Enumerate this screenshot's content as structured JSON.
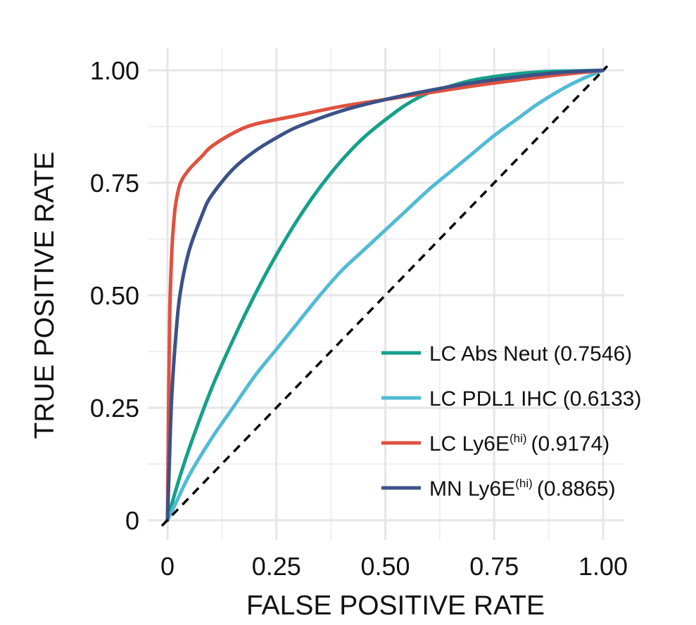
{
  "chart_data": {
    "type": "line",
    "title": "",
    "xlabel": "FALSE POSITIVE RATE",
    "ylabel": "TRUE POSITIVE RATE",
    "xlim": [
      0,
      1
    ],
    "ylim": [
      0,
      1
    ],
    "x_ticks": [
      0,
      0.25,
      0.5,
      0.75,
      1.0
    ],
    "x_tick_labels": [
      "0",
      "0.25",
      "0.50",
      "0.75",
      "1.00"
    ],
    "y_ticks": [
      0,
      0.25,
      0.5,
      0.75,
      1.0
    ],
    "y_tick_labels": [
      "0",
      "0.25",
      "0.50",
      "0.75",
      "1.00"
    ],
    "grid": true,
    "legend_position": "bottom-right",
    "diagonal": {
      "style": "dashed",
      "color": "#000000",
      "points": [
        [
          0,
          0
        ],
        [
          1,
          1
        ]
      ]
    },
    "series": [
      {
        "name": "LC Abs Neut",
        "name_sup": "",
        "auc": "(0.7546)",
        "color": "#15a08a",
        "x": [
          0,
          0.02,
          0.05,
          0.1,
          0.15,
          0.2,
          0.25,
          0.3,
          0.35,
          0.4,
          0.45,
          0.5,
          0.55,
          0.6,
          0.65,
          0.7,
          0.75,
          0.8,
          0.85,
          0.9,
          0.95,
          1.0
        ],
        "y": [
          0,
          0.07,
          0.16,
          0.29,
          0.4,
          0.5,
          0.59,
          0.67,
          0.74,
          0.8,
          0.85,
          0.89,
          0.925,
          0.95,
          0.965,
          0.978,
          0.986,
          0.992,
          0.996,
          0.998,
          0.999,
          1.0
        ]
      },
      {
        "name": "LC PDL1 IHC",
        "name_sup": "",
        "auc": "(0.6133)",
        "color": "#4fbbd5",
        "x": [
          0,
          0.02,
          0.05,
          0.1,
          0.15,
          0.2,
          0.25,
          0.3,
          0.35,
          0.4,
          0.45,
          0.5,
          0.55,
          0.6,
          0.65,
          0.7,
          0.75,
          0.8,
          0.85,
          0.9,
          0.95,
          1.0
        ],
        "y": [
          0,
          0.04,
          0.1,
          0.18,
          0.25,
          0.32,
          0.38,
          0.44,
          0.5,
          0.555,
          0.6,
          0.645,
          0.69,
          0.735,
          0.775,
          0.815,
          0.855,
          0.89,
          0.925,
          0.955,
          0.98,
          1.0
        ]
      },
      {
        "name": "LC Ly6E",
        "name_sup": "(hi)",
        "auc": "(0.9174)",
        "color": "#e05140",
        "x": [
          0,
          0.002,
          0.005,
          0.01,
          0.015,
          0.02,
          0.03,
          0.05,
          0.08,
          0.1,
          0.15,
          0.2,
          0.3,
          0.4,
          0.5,
          0.6,
          0.7,
          0.8,
          0.9,
          1.0
        ],
        "y": [
          0,
          0.2,
          0.45,
          0.6,
          0.67,
          0.71,
          0.75,
          0.78,
          0.81,
          0.83,
          0.86,
          0.88,
          0.9,
          0.92,
          0.935,
          0.95,
          0.965,
          0.978,
          0.99,
          1.0
        ]
      },
      {
        "name": "MN Ly6E",
        "name_sup": "(hi)",
        "auc": "(0.8865)",
        "color": "#3b5288",
        "x": [
          0,
          0.005,
          0.01,
          0.02,
          0.03,
          0.05,
          0.08,
          0.1,
          0.15,
          0.2,
          0.25,
          0.3,
          0.4,
          0.5,
          0.6,
          0.7,
          0.8,
          0.9,
          1.0
        ],
        "y": [
          0,
          0.15,
          0.28,
          0.42,
          0.51,
          0.6,
          0.68,
          0.72,
          0.78,
          0.82,
          0.85,
          0.875,
          0.91,
          0.935,
          0.955,
          0.972,
          0.985,
          0.995,
          1.0
        ]
      }
    ]
  }
}
